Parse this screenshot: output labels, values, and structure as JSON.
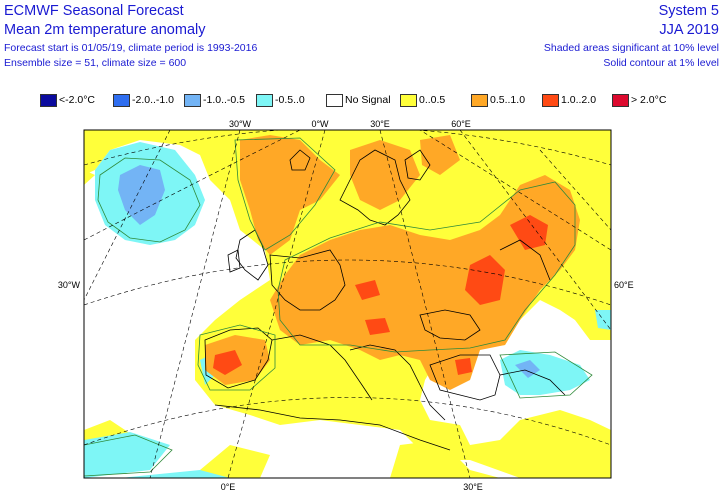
{
  "header": {
    "title": "ECMWF Seasonal Forecast",
    "subtitle": "Mean 2m temperature anomaly",
    "forecast_info": "Forecast start is 01/05/19, climate period is 1993-2016",
    "ensemble_info": "Ensemble size = 51, climate size = 600",
    "system": "System 5",
    "season": "JJA 2019",
    "shaded_note": "Shaded areas significant at 10% level",
    "contour_note": "Solid contour at 1% level"
  },
  "legend": [
    {
      "label": "<-2.0°C",
      "color": "#0b0b9e"
    },
    {
      "label": "-2.0..-1.0",
      "color": "#2f6ef0"
    },
    {
      "label": "-1.0..-0.5",
      "color": "#73b4f5"
    },
    {
      "label": "-0.5..0",
      "color": "#7ef6f6"
    },
    {
      "label": "No Signal",
      "color": "#ffffff"
    },
    {
      "label": "0..0.5",
      "color": "#ffff3a"
    },
    {
      "label": "0.5..1.0",
      "color": "#ffa826"
    },
    {
      "label": "1.0..2.0",
      "color": "#ff4a14"
    },
    {
      "label": "> 2.0°C",
      "color": "#dc0a2e"
    }
  ],
  "map_labels": {
    "top": [
      "30°W",
      "0°W",
      "30°E",
      "60°E"
    ],
    "left": "30°W",
    "right": "60°E",
    "bottom": [
      "0°E",
      "30°E"
    ]
  }
}
